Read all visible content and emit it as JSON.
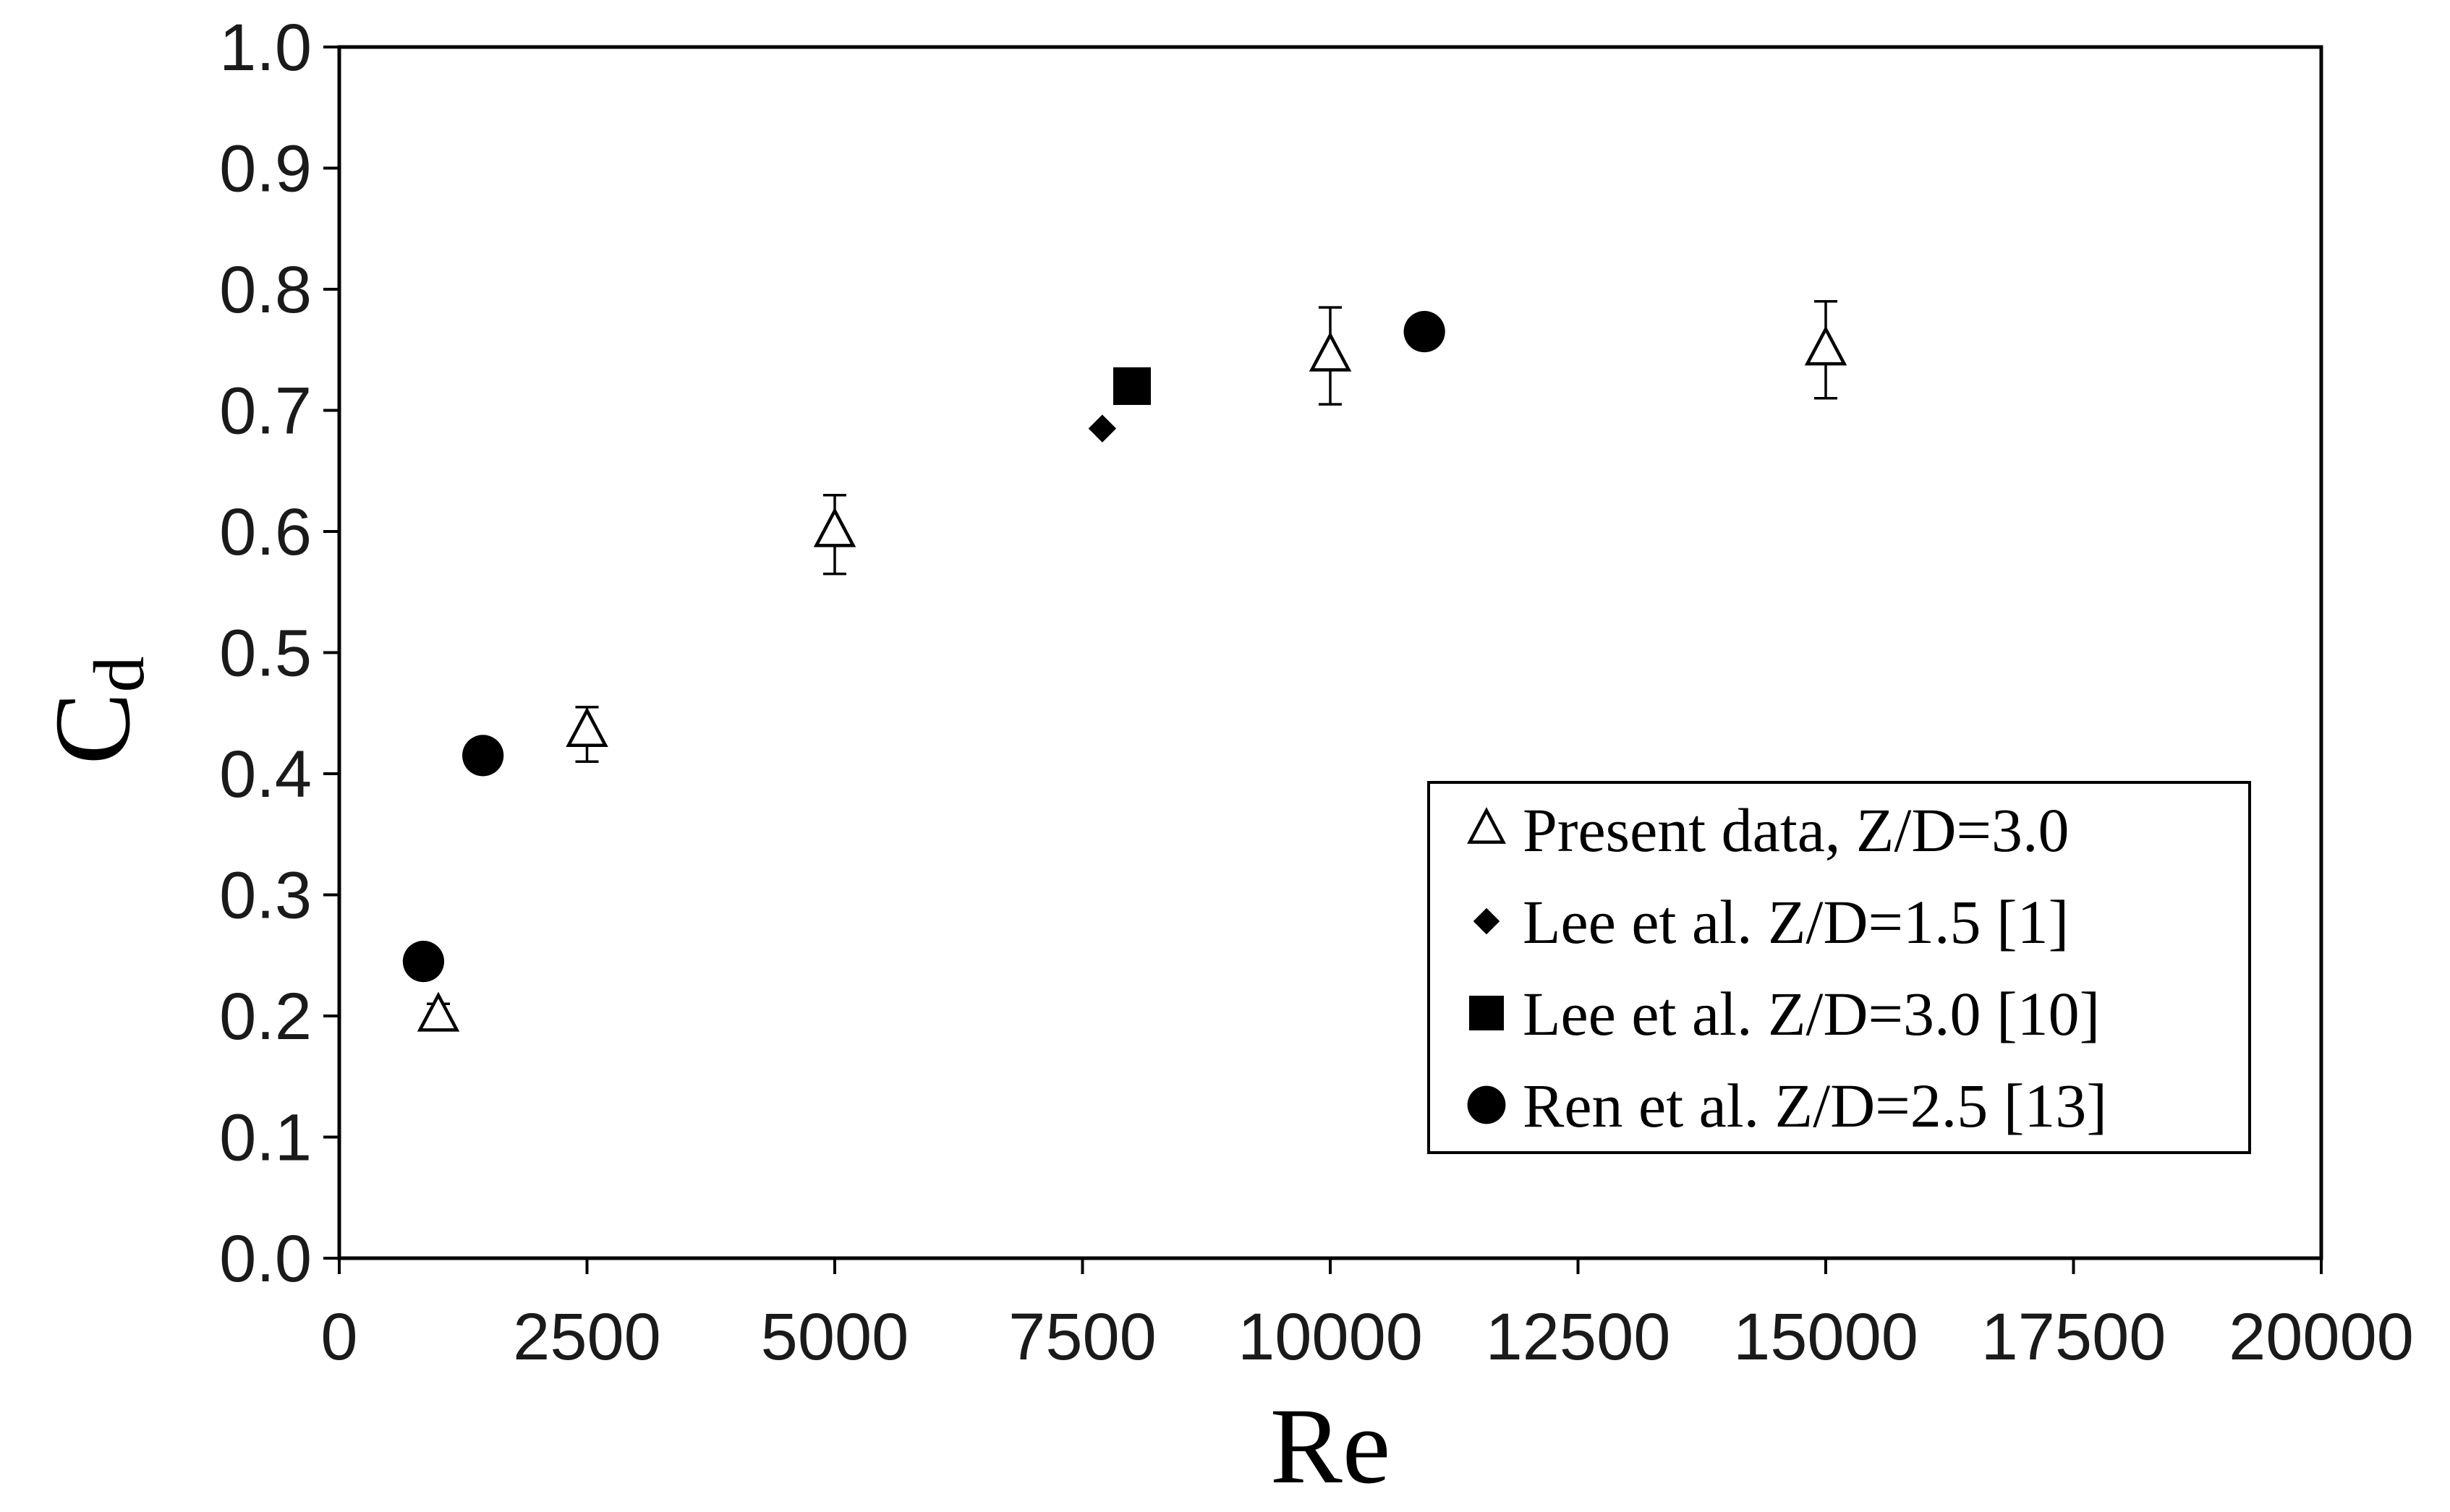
{
  "chart_data": {
    "type": "scatter",
    "title": "",
    "xlabel": "Re",
    "ylabel": {
      "main": "C",
      "sub": "d"
    },
    "xlim": [
      0,
      20000
    ],
    "ylim": [
      0,
      1.0
    ],
    "x_ticks": [
      0,
      2500,
      5000,
      7500,
      10000,
      12500,
      15000,
      17500,
      20000
    ],
    "x_tick_labels": [
      "0",
      "2500",
      "5000",
      "7500",
      "10000",
      "12500",
      "15000",
      "17500",
      "20000"
    ],
    "y_ticks": [
      0,
      0.1,
      0.2,
      0.3,
      0.4,
      0.5,
      0.6,
      0.7,
      0.8,
      0.9,
      1.0
    ],
    "y_tick_labels": [
      "0.0",
      "0.1",
      "0.2",
      "0.3",
      "0.4",
      "0.5",
      "0.6",
      "0.7",
      "0.8",
      "0.9",
      "1.0"
    ],
    "grid": false,
    "legend_position": "bottom-right",
    "series": [
      {
        "name": "Present data, Z/D=3.0",
        "marker": "open-triangle",
        "color": "#000000",
        "points": [
          {
            "x": 1000,
            "y": 0.2,
            "err_lo": 0.19,
            "err_hi": 0.21
          },
          {
            "x": 2500,
            "y": 0.435,
            "err_lo": 0.41,
            "err_hi": 0.455
          },
          {
            "x": 5000,
            "y": 0.6,
            "err_lo": 0.565,
            "err_hi": 0.63
          },
          {
            "x": 10000,
            "y": 0.745,
            "err_lo": 0.705,
            "err_hi": 0.785
          },
          {
            "x": 15000,
            "y": 0.75,
            "err_lo": 0.71,
            "err_hi": 0.79
          }
        ]
      },
      {
        "name": "Lee et al.  Z/D=1.5 [1]",
        "marker": "filled-diamond",
        "color": "#000000",
        "points": [
          {
            "x": 7700,
            "y": 0.685
          }
        ]
      },
      {
        "name": "Lee et al.  Z/D=3.0 [10]",
        "marker": "filled-square",
        "color": "#000000",
        "points": [
          {
            "x": 8000,
            "y": 0.72
          }
        ]
      },
      {
        "name": "Ren et al. Z/D=2.5 [13]",
        "marker": "filled-circle",
        "color": "#000000",
        "points": [
          {
            "x": 850,
            "y": 0.245
          },
          {
            "x": 1450,
            "y": 0.415
          },
          {
            "x": 10950,
            "y": 0.765
          }
        ]
      }
    ]
  }
}
